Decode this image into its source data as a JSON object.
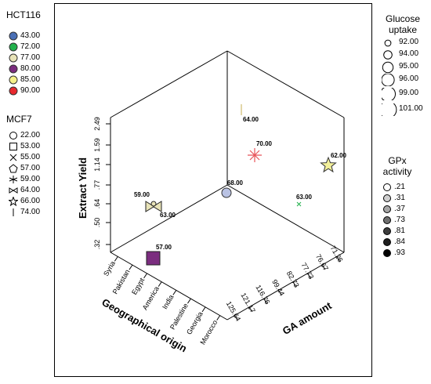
{
  "chart_data": {
    "type": "scatter",
    "subtype": "3d-scatter",
    "axes": {
      "vertical": {
        "label": "Extract Yield",
        "ticks": [
          ".32",
          ".50",
          ".64",
          ".77",
          "1.14",
          "1.59",
          "2.49"
        ]
      },
      "left_floor": {
        "label": "Geographical origin",
        "ticks": [
          "Syria",
          "Pakistan",
          "Egypt",
          "America",
          "India",
          "Palestine",
          "Georgia",
          "Morocco"
        ]
      },
      "right_floor": {
        "label": "GA amount",
        "ticks": [
          "125.64",
          "121.17",
          "116.76",
          "99.44",
          "82.73",
          "77.73",
          "76.67",
          "71.26"
        ]
      }
    },
    "points": [
      {
        "origin": "Egypt",
        "extract_yield": ".32",
        "ga_amount": "125.64",
        "label": "57.00",
        "hct116": "80.00",
        "mcf7": "57.00",
        "color": "#7b2d7f"
      },
      {
        "origin": "Syria",
        "extract_yield": ".64",
        "ga_amount": "99.44",
        "label": "59.00",
        "label2": "63.00",
        "hct116": "77.00",
        "mcf7": "59.00",
        "color": "#e8e3b8"
      },
      {
        "origin": "Georgia",
        "extract_yield": ".77",
        "ga_amount": "82.73",
        "label": "68.00",
        "hct116": "43.00",
        "mcf7": "22.00",
        "color": "#b9c2e3"
      },
      {
        "origin": "India",
        "extract_yield": "1.59",
        "ga_amount": "76.67",
        "label": "70.00",
        "hct116": "90.00",
        "mcf7": "59.00",
        "color": "#e8555a"
      },
      {
        "origin": "Morocco",
        "extract_yield": "1.59",
        "ga_amount": "82.73",
        "label": "63.00",
        "hct116": "72.00",
        "mcf7": "55.00",
        "color": "#22b14c"
      },
      {
        "origin": "Pakistan",
        "extract_yield": "2.49",
        "ga_amount": "71.26",
        "label": "64.00",
        "hct116": "85.00",
        "mcf7": "74.00",
        "color": "#d8c98a"
      },
      {
        "origin": "Palestine",
        "extract_yield": "2.49",
        "ga_amount": "71.26",
        "label": "62.00",
        "hct116": "85.00",
        "mcf7": "66.00",
        "color": "#f3f09a"
      }
    ],
    "legends": {
      "hct116": {
        "title": "HCT116",
        "entries": [
          {
            "label": "43.00",
            "color": "#4a6fb5"
          },
          {
            "label": "72.00",
            "color": "#22b14c"
          },
          {
            "label": "77.00",
            "color": "#e8e3b8"
          },
          {
            "label": "80.00",
            "color": "#7b2d7f"
          },
          {
            "label": "85.00",
            "color": "#f5f08a"
          },
          {
            "label": "90.00",
            "color": "#e8292e"
          }
        ]
      },
      "mcf7": {
        "title": "MCF7",
        "entries": [
          {
            "label": "22.00",
            "symbol": "circle-icon"
          },
          {
            "label": "53.00",
            "symbol": "square-icon"
          },
          {
            "label": "55.00",
            "symbol": "cross-icon"
          },
          {
            "label": "57.00",
            "symbol": "pentagon-icon"
          },
          {
            "label": "59.00",
            "symbol": "asterisk-icon"
          },
          {
            "label": "64.00",
            "symbol": "bowtie-icon"
          },
          {
            "label": "66.00",
            "symbol": "star-icon"
          },
          {
            "label": "74.00",
            "symbol": "bar-icon"
          }
        ]
      },
      "glucose": {
        "title": "Glucose uptake",
        "entries": [
          {
            "label": "92.00",
            "size_rank": 1
          },
          {
            "label": "94.00",
            "size_rank": 2
          },
          {
            "label": "95.00",
            "size_rank": 3
          },
          {
            "label": "96.00",
            "size_rank": 4
          },
          {
            "label": "99.00",
            "size_rank": 5
          },
          {
            "label": "101.00",
            "size_rank": 6
          }
        ]
      },
      "gpx": {
        "title": "GPx activity",
        "entries": [
          {
            "label": ".21",
            "color": "#ffffff"
          },
          {
            "label": ".31",
            "color": "#cfcfcf"
          },
          {
            "label": ".37",
            "color": "#a6a6a6"
          },
          {
            "label": ".73",
            "color": "#6f6f6f"
          },
          {
            "label": ".81",
            "color": "#3d3d3d"
          },
          {
            "label": ".84",
            "color": "#1e1e1e"
          },
          {
            "label": ".93",
            "color": "#000000"
          }
        ]
      }
    }
  }
}
